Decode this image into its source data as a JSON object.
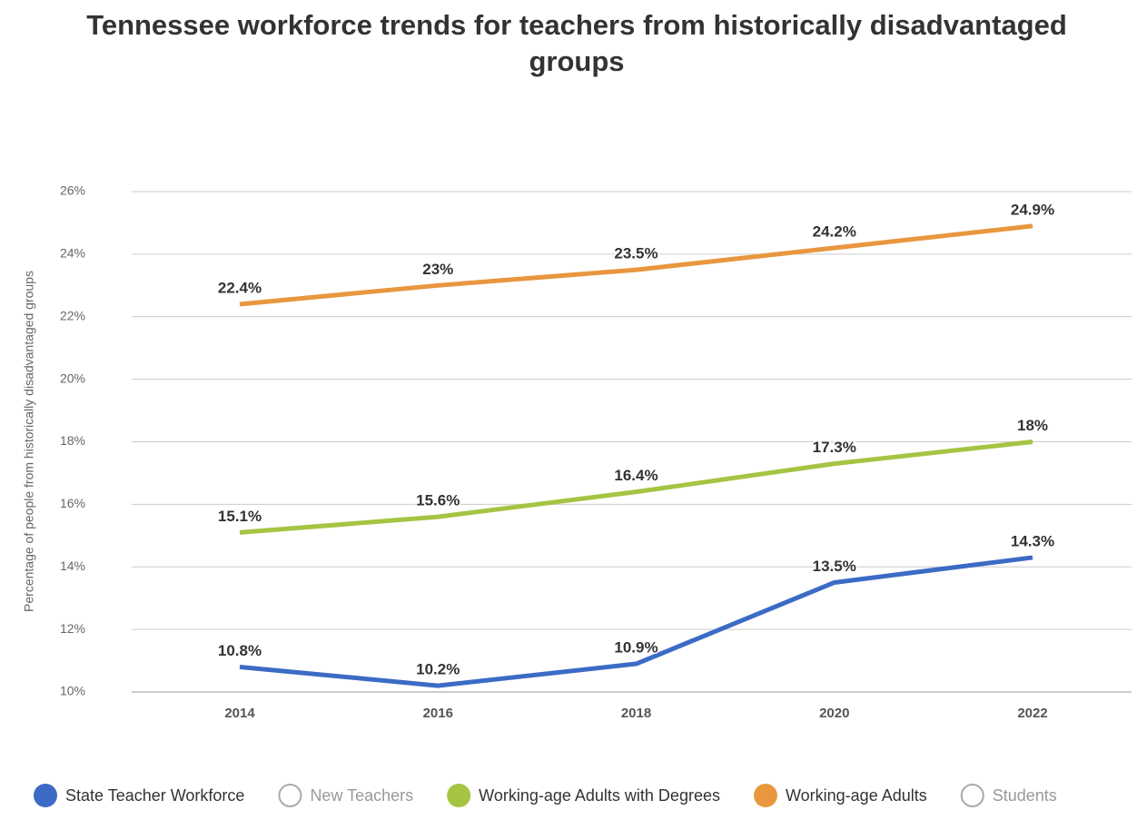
{
  "chart_data": {
    "type": "line",
    "title": "Tennessee workforce trends for teachers from historically disadvantaged groups",
    "y_label": "Percentage of people from historically disadvantaged groups",
    "categories": [
      "2014",
      "2016",
      "2018",
      "2020",
      "2022"
    ],
    "series": [
      {
        "name": "State Teacher Workforce",
        "color": "#3b6bc5",
        "values": [
          10.8,
          10.2,
          10.9,
          13.5,
          14.3
        ],
        "value_labels": [
          "10.8%",
          "10.2%",
          "10.9%",
          "13.5%",
          "14.3%"
        ]
      },
      {
        "name": "New Teachers",
        "color": "#bbbbbb",
        "hidden": true,
        "values": [
          null,
          null,
          null,
          null,
          null
        ]
      },
      {
        "name": "Working-age Adults with Degrees",
        "color": "#a5c442",
        "values": [
          15.1,
          15.6,
          16.4,
          17.3,
          18
        ],
        "value_labels": [
          "15.1%",
          "15.6%",
          "16.4%",
          "17.3%",
          "18%"
        ]
      },
      {
        "name": "Working-age Adults",
        "color": "#e8973f",
        "values": [
          22.4,
          23,
          23.5,
          24.2,
          24.9
        ],
        "value_labels": [
          "22.4%",
          "23%",
          "23.5%",
          "24.2%",
          "24.9%"
        ]
      },
      {
        "name": "Students",
        "color": "#bbbbbb",
        "hidden": true,
        "values": [
          null,
          null,
          null,
          null,
          null
        ]
      }
    ],
    "ylim": [
      10,
      26
    ],
    "yticks": [
      {
        "value": 10,
        "label": "10%"
      },
      {
        "value": 12,
        "label": "12%"
      },
      {
        "value": 14,
        "label": "14%"
      },
      {
        "value": 16,
        "label": "16%"
      },
      {
        "value": 18,
        "label": "18%"
      },
      {
        "value": 20,
        "label": "20%"
      },
      {
        "value": 22,
        "label": "22%"
      },
      {
        "value": 24,
        "label": "24%"
      },
      {
        "value": 26,
        "label": "26%"
      }
    ],
    "grid": true,
    "legend": "bottom"
  }
}
